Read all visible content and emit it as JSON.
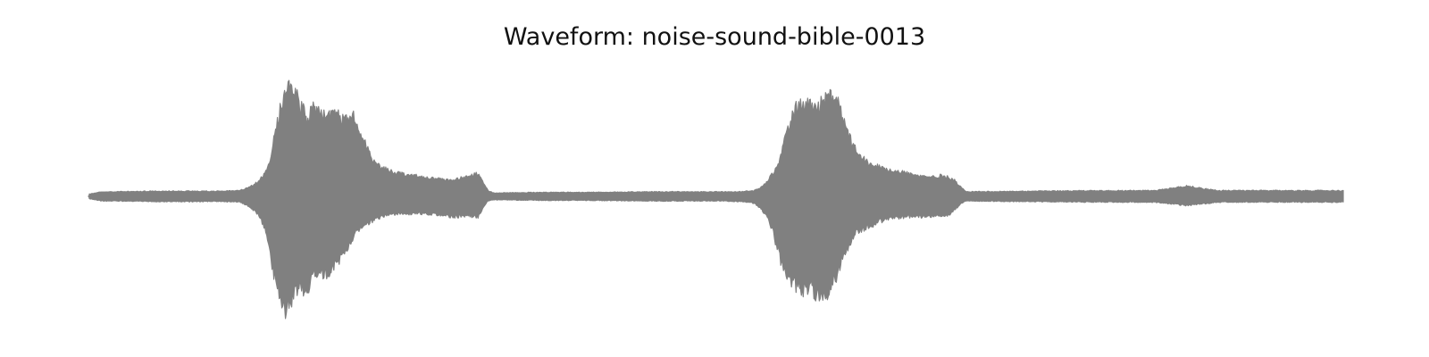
{
  "chart_data": {
    "type": "area",
    "title": "Waveform: noise-sound-bible-0013",
    "xlabel": "",
    "ylabel": "",
    "axes_visible": false,
    "grid": false,
    "color": "#808080",
    "x_range": [
      0,
      1
    ],
    "ylim": [
      -1,
      1
    ],
    "envelope": {
      "x": [
        0,
        0.01,
        0.02,
        0.05,
        0.1,
        0.12,
        0.128,
        0.135,
        0.14,
        0.144,
        0.148,
        0.152,
        0.156,
        0.16,
        0.164,
        0.168,
        0.17,
        0.174,
        0.178,
        0.182,
        0.186,
        0.19,
        0.194,
        0.198,
        0.202,
        0.206,
        0.21,
        0.214,
        0.218,
        0.222,
        0.226,
        0.23,
        0.235,
        0.24,
        0.25,
        0.26,
        0.27,
        0.28,
        0.29,
        0.3,
        0.31,
        0.315,
        0.318,
        0.322,
        0.33,
        0.36,
        0.4,
        0.45,
        0.5,
        0.52,
        0.53,
        0.535,
        0.54,
        0.545,
        0.55,
        0.555,
        0.56,
        0.565,
        0.57,
        0.575,
        0.58,
        0.585,
        0.59,
        0.595,
        0.6,
        0.605,
        0.61,
        0.615,
        0.62,
        0.625,
        0.63,
        0.64,
        0.65,
        0.66,
        0.67,
        0.68,
        0.685,
        0.69,
        0.695,
        0.7,
        0.75,
        0.8,
        0.85,
        0.875,
        0.9,
        0.95,
        1.0
      ],
      "upper": [
        0.02,
        0.04,
        0.04,
        0.045,
        0.045,
        0.05,
        0.08,
        0.13,
        0.2,
        0.33,
        0.55,
        0.76,
        0.95,
        1.0,
        0.92,
        0.78,
        0.85,
        0.63,
        0.8,
        0.73,
        0.76,
        0.73,
        0.7,
        0.71,
        0.66,
        0.7,
        0.72,
        0.62,
        0.52,
        0.43,
        0.32,
        0.27,
        0.25,
        0.22,
        0.2,
        0.18,
        0.16,
        0.15,
        0.14,
        0.17,
        0.2,
        0.1,
        0.05,
        0.03,
        0.03,
        0.035,
        0.035,
        0.04,
        0.04,
        0.04,
        0.05,
        0.07,
        0.12,
        0.2,
        0.32,
        0.5,
        0.68,
        0.8,
        0.84,
        0.82,
        0.77,
        0.84,
        0.87,
        0.86,
        0.72,
        0.55,
        0.43,
        0.35,
        0.3,
        0.27,
        0.26,
        0.23,
        0.21,
        0.18,
        0.17,
        0.18,
        0.17,
        0.14,
        0.08,
        0.04,
        0.045,
        0.05,
        0.05,
        0.09,
        0.05,
        0.05,
        0.05
      ],
      "lower": [
        -0.02,
        -0.04,
        -0.04,
        -0.045,
        -0.045,
        -0.05,
        -0.09,
        -0.16,
        -0.28,
        -0.5,
        -0.72,
        -0.87,
        -1.0,
        -0.93,
        -0.87,
        -0.72,
        -0.8,
        -0.85,
        -0.67,
        -0.75,
        -0.69,
        -0.67,
        -0.62,
        -0.58,
        -0.55,
        -0.48,
        -0.37,
        -0.3,
        -0.26,
        -0.24,
        -0.22,
        -0.19,
        -0.17,
        -0.16,
        -0.15,
        -0.15,
        -0.15,
        -0.16,
        -0.18,
        -0.17,
        -0.18,
        -0.08,
        -0.04,
        -0.03,
        -0.03,
        -0.035,
        -0.035,
        -0.04,
        -0.04,
        -0.045,
        -0.06,
        -0.1,
        -0.17,
        -0.3,
        -0.52,
        -0.7,
        -0.8,
        -0.79,
        -0.82,
        -0.8,
        -0.86,
        -0.88,
        -0.84,
        -0.72,
        -0.55,
        -0.45,
        -0.33,
        -0.3,
        -0.27,
        -0.25,
        -0.22,
        -0.19,
        -0.18,
        -0.18,
        -0.17,
        -0.18,
        -0.17,
        -0.12,
        -0.06,
        -0.04,
        -0.045,
        -0.05,
        -0.05,
        -0.08,
        -0.05,
        -0.05,
        -0.05
      ]
    }
  }
}
